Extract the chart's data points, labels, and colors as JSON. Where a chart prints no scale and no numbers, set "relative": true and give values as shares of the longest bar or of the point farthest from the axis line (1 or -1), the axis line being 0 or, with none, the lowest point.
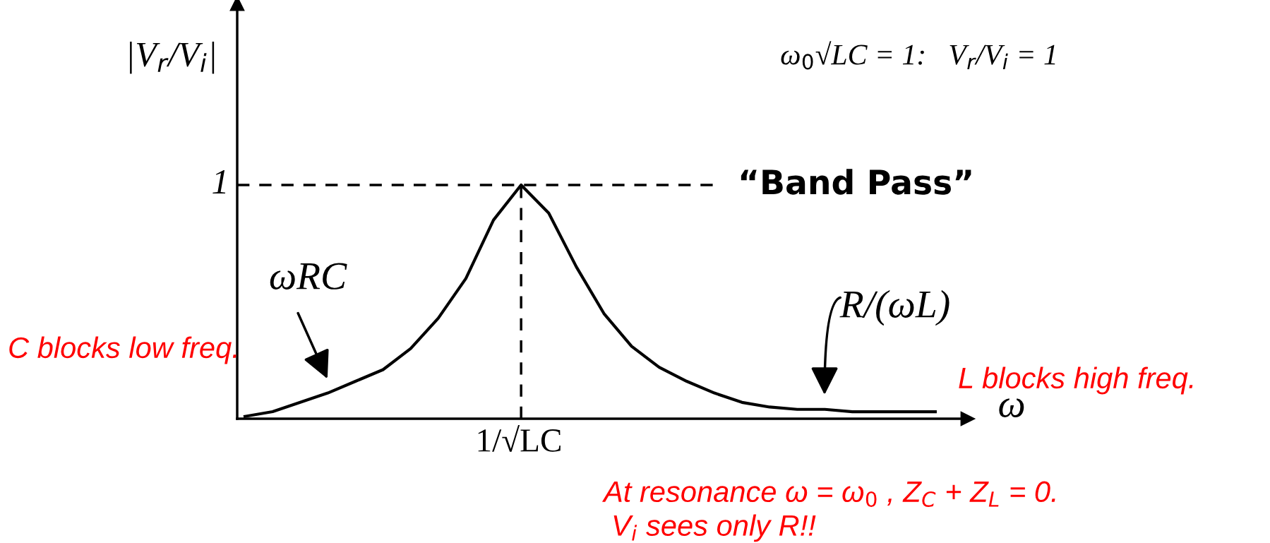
{
  "chart_data": {
    "type": "line",
    "relative": true,
    "xlabel": "ω",
    "ylabel": "|V$_{r}$/V$_{i}$|",
    "categories": [
      null,
      null,
      null,
      null,
      null,
      null,
      null,
      null,
      null,
      null,
      null,
      null,
      null,
      null,
      null,
      null,
      null,
      null,
      null,
      null,
      null,
      null,
      null,
      null,
      null,
      null
    ],
    "series": [
      {
        "color": "#000000",
        "values": [
          0.01,
          0.03,
          0.07,
          0.11,
          0.16,
          0.21,
          0.3,
          0.43,
          0.6,
          0.85,
          1,
          0.88,
          0.65,
          0.45,
          0.31,
          0.22,
          0.16,
          0.11,
          0.07,
          0.05,
          0.04,
          0.04,
          0.03,
          0.03,
          0.03,
          0.03
        ]
      }
    ],
    "annotations": [
      "ω$_{0}$√LC = 1:   V$_{r}$/V$_{i}$ = 1",
      "ωRC",
      "R/(ωL)",
      "C blocks low freq.",
      "L blocks high freq.",
      "At resonance ω = ω$_{0}$ , Z$_{C}$ + Z$_{L}$ = 0.",
      "V$_{i}$ sees only R!!",
      "1",
      "1/√LC",
      "“Band Pass”"
    ],
    "grid": false,
    "legend": false,
    "marker": "none",
    "line_style": "solid"
  }
}
